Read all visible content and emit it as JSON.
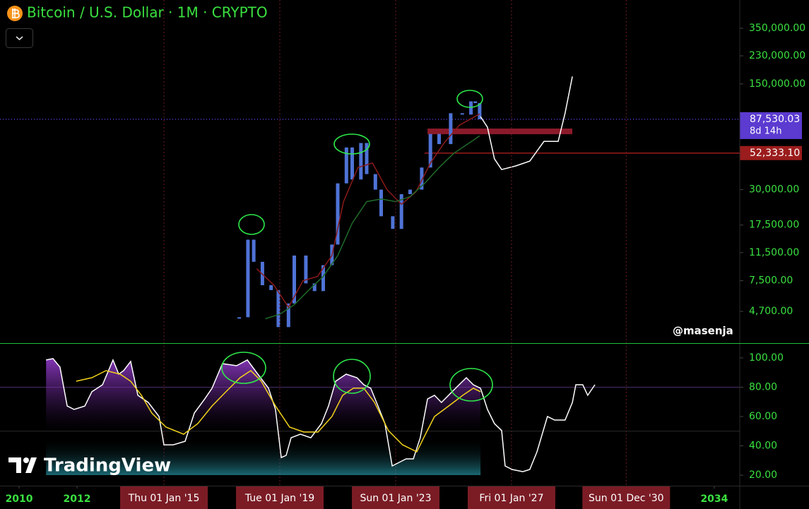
{
  "title": "Bitcoin / U.S. Dollar · 1M · CRYPTO",
  "watermark": "@masenja",
  "logo": "TradingView",
  "chart_data": [
    {
      "type": "line",
      "log_scale": true,
      "xlim": [
        2009.34,
        2034.88
      ],
      "ylim": [
        2900,
        538000
      ],
      "yticks": [
        {
          "value": 4700,
          "label": "4,700.00"
        },
        {
          "value": 7500,
          "label": "7,500.00"
        },
        {
          "value": 11500,
          "label": "11,500.00"
        },
        {
          "value": 17500,
          "label": "17,500.00"
        },
        {
          "value": 30000,
          "label": "30,000.00"
        },
        {
          "value": 150000,
          "label": "150,000.00"
        },
        {
          "value": 230000,
          "label": "230,000.00"
        },
        {
          "value": 350000,
          "label": "350,000.00"
        }
      ],
      "series": [
        {
          "style": "candles",
          "color": "#4f73d6",
          "x": [
            2017.6,
            2017.9,
            2018.1,
            2018.4,
            2018.7,
            2018.95,
            2019.3,
            2019.5,
            2019.9,
            2020.2,
            2020.5,
            2020.8,
            2021.0,
            2021.3,
            2021.5,
            2021.8,
            2022.0,
            2022.3,
            2022.5,
            2022.9,
            2023.2,
            2023.5,
            2023.9,
            2024.2,
            2024.5,
            2024.9,
            2025.3,
            2025.6,
            2025.75,
            2025.9
          ],
          "values": [
            4300,
            14000,
            10000,
            7000,
            6500,
            3700,
            5300,
            11000,
            7200,
            6400,
            9500,
            13000,
            33000,
            57000,
            35000,
            61000,
            38000,
            30000,
            20000,
            16500,
            28000,
            30000,
            42000,
            70000,
            60000,
            96000,
            94000,
            115000,
            112000,
            87530
          ]
        },
        {
          "color": "#8b1a1a",
          "x": [
            2018.2,
            2018.8,
            2019.3,
            2019.8,
            2020.3,
            2020.8,
            2021.2,
            2021.7,
            2022.2,
            2022.7,
            2023.2,
            2023.7,
            2024.2,
            2024.7,
            2025.2,
            2025.9
          ],
          "values": [
            9000,
            7000,
            5000,
            7500,
            8000,
            11000,
            25000,
            42000,
            45000,
            30000,
            24000,
            29000,
            45000,
            62000,
            80000,
            95000
          ]
        },
        {
          "color": "#1f6b2a",
          "x": [
            2018.5,
            2019.0,
            2019.5,
            2020.0,
            2020.5,
            2021.0,
            2021.5,
            2022.0,
            2022.5,
            2023.0,
            2023.5,
            2024.0,
            2024.5,
            2025.0,
            2025.9
          ],
          "values": [
            4200,
            4500,
            5200,
            6500,
            8000,
            11000,
            18000,
            25000,
            26000,
            25000,
            27000,
            33000,
            42000,
            52000,
            68000
          ]
        },
        {
          "color": "#ffffff",
          "x": [
            2025.93,
            2026.17,
            2026.41,
            2026.66,
            2027.14,
            2027.63,
            2028.12,
            2028.61,
            2028.85,
            2029.1
          ],
          "values": [
            91200,
            77600,
            47900,
            40700,
            43000,
            46300,
            62500,
            62500,
            96200,
            168000
          ]
        }
      ],
      "zone": {
        "value": 72800,
        "color": "#8b1a2a",
        "x": [
          2024.1,
          2029.1
        ]
      },
      "levels": [
        {
          "value": 87530.03,
          "label": "87,530.03",
          "countdown": "8d 14h",
          "color": "#5b3bd0"
        },
        {
          "value": 52333.1,
          "label": "52,333.10",
          "color": "#9b1c1c",
          "from": 2024.0
        }
      ]
    },
    {
      "type": "line",
      "xlim": [
        2009.34,
        2034.88
      ],
      "ylim": [
        12.8,
        110.1
      ],
      "yticks": [
        {
          "value": 20,
          "label": "20.00"
        },
        {
          "value": 40,
          "label": "40.00"
        },
        {
          "value": 60,
          "label": "60.00"
        },
        {
          "value": 80,
          "label": "80.00"
        },
        {
          "value": 100,
          "label": "100.00"
        }
      ],
      "xticks": [
        2010,
        2012,
        {
          "value": 2015,
          "label": "Thu 01 Jan '15"
        },
        {
          "value": 2019,
          "label": "Tue 01 Jan '19"
        },
        {
          "value": 2023,
          "label": "Sun 01 Jan '23"
        },
        {
          "value": 2027,
          "label": "Fri 01 Jan '27"
        },
        {
          "value": 2030.96,
          "label": "Sun 01 Dec '30"
        },
        2034
      ],
      "levels": [
        {
          "value": 80,
          "color": "#4a2f66"
        },
        {
          "value": 50,
          "color": "#2a2a2a"
        }
      ],
      "series": [
        {
          "color": "#ffffff",
          "fill": true,
          "x": [
            2010.93,
            2011.17,
            2011.41,
            2011.66,
            2011.9,
            2012.27,
            2012.51,
            2012.88,
            2013.24,
            2013.44,
            2013.61,
            2013.85,
            2014.1,
            2014.46,
            2014.83,
            2015.0,
            2015.32,
            2015.73,
            2016.05,
            2016.41,
            2016.66,
            2017.02,
            2017.51,
            2017.88,
            2018.24,
            2018.61,
            2018.85,
            2019.05,
            2019.22,
            2019.39,
            2019.71,
            2020.07,
            2020.44,
            2020.68,
            2020.93,
            2021.29,
            2021.66,
            2021.9,
            2022.14,
            2022.39,
            2022.63,
            2022.88,
            2023.12,
            2023.36,
            2023.61,
            2023.85,
            2024.1,
            2024.34,
            2024.58,
            2024.95,
            2025.19,
            2025.44,
            2025.68,
            2025.93
          ],
          "values": [
            98.6,
            99.5,
            93.7,
            67.2,
            64.8,
            67.2,
            76.9,
            81.7,
            98.6,
            88.9,
            91.3,
            97.6,
            74.5,
            69.6,
            60.0,
            40.7,
            40.7,
            43.1,
            62.4,
            72.0,
            79.3,
            96.1,
            94.7,
            98.6,
            88.9,
            79.3,
            64.8,
            32.0,
            33.5,
            45.5,
            47.9,
            45.5,
            55.2,
            67.2,
            84.1,
            88.9,
            86.5,
            81.7,
            79.3,
            67.2,
            55.2,
            26.3,
            28.7,
            31.1,
            31.1,
            45.5,
            72.0,
            74.5,
            69.6,
            76.9,
            81.7,
            86.5,
            81.7,
            79.3
          ]
        },
        {
          "color": "#ffffff",
          "x": [
            2025.93,
            2026.17,
            2026.41,
            2026.66,
            2026.78,
            2027.02,
            2027.39,
            2027.63,
            2027.88,
            2028.24,
            2028.49,
            2028.85,
            2029.1,
            2029.22,
            2029.46,
            2029.63,
            2029.88
          ],
          "values": [
            79.3,
            64.8,
            55.2,
            50.4,
            26.3,
            23.9,
            22.4,
            23.9,
            35.9,
            60.0,
            57.6,
            57.6,
            69.6,
            81.7,
            81.7,
            74.5,
            81.7
          ]
        },
        {
          "color": "#f2d21b",
          "x": [
            2011.97,
            2012.51,
            2013.0,
            2013.49,
            2013.85,
            2014.22,
            2014.58,
            2015.07,
            2015.68,
            2016.17,
            2016.66,
            2017.14,
            2017.63,
            2018.0,
            2018.36,
            2018.85,
            2019.34,
            2019.83,
            2020.32,
            2020.8,
            2021.17,
            2021.54,
            2021.9,
            2022.27,
            2022.75,
            2023.24,
            2023.73,
            2023.97,
            2024.34,
            2024.83,
            2025.32,
            2025.68,
            2025.93
          ],
          "values": [
            84.1,
            86.5,
            91.3,
            88.9,
            84.1,
            74.5,
            62.4,
            52.8,
            47.9,
            55.2,
            67.2,
            76.9,
            86.5,
            91.3,
            84.1,
            67.2,
            52.8,
            49.4,
            49.4,
            60.0,
            74.5,
            79.3,
            79.3,
            69.6,
            50.4,
            40.7,
            35.9,
            45.5,
            60.0,
            67.2,
            74.5,
            79.3,
            76.9
          ]
        }
      ]
    }
  ]
}
